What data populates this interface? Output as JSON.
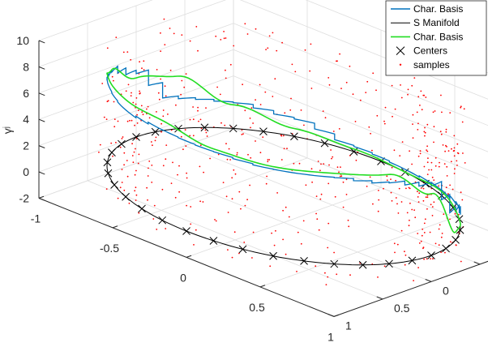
{
  "chart_data": {
    "type": "line3d",
    "zlabel": "γʲ",
    "xlim": [
      -1,
      1
    ],
    "ylim": [
      -1,
      1
    ],
    "zlim": [
      -2,
      10
    ],
    "x_ticks": [
      "-1",
      "-0.5",
      "0",
      "0.5",
      "1"
    ],
    "y_ticks": [
      "-1",
      "-0.5",
      "0",
      "0.5",
      "1"
    ],
    "z_ticks": [
      "-2",
      "0",
      "2",
      "4",
      "6",
      "8",
      "10"
    ],
    "grid": true,
    "legend_position": "top-right",
    "legend": [
      {
        "label": "Char. Basis",
        "marker": "line",
        "color": "#0072BD"
      },
      {
        "label": "S Manifold",
        "marker": "line",
        "color": "#000000"
      },
      {
        "label": "Char. Basis",
        "marker": "line",
        "color": "#22dd22"
      },
      {
        "label": "Centers",
        "marker": "x",
        "color": "#000000"
      },
      {
        "label": "samples",
        "marker": "dot",
        "color": "#ff0000"
      }
    ],
    "manifold": {
      "shape": "unit-circle",
      "z": 0,
      "color": "#000000"
    },
    "centers": {
      "count": 36,
      "radius": 1,
      "z": 0,
      "color": "#000000"
    },
    "series": [
      {
        "legend_index": 0,
        "color": "#0072BD",
        "style": "staircase",
        "theta_deg": [
          0,
          20,
          40,
          60,
          80,
          100,
          120,
          140,
          160,
          180,
          200,
          220,
          240,
          260,
          280,
          300,
          320,
          340
        ],
        "z": [
          5.5,
          6.2,
          6.6,
          6.6,
          6.8,
          6.9,
          6.6,
          6.8,
          6.2,
          5.0,
          2.3,
          2.0,
          1.4,
          0.4,
          0.2,
          0.4,
          0.8,
          2.3
        ]
      },
      {
        "legend_index": 2,
        "color": "#22dd22",
        "style": "smooth",
        "theta_deg": [
          0,
          20,
          40,
          60,
          80,
          100,
          120,
          140,
          160,
          180,
          200,
          220,
          240,
          260,
          280,
          300,
          320,
          340
        ],
        "z": [
          4.7,
          6.8,
          6.9,
          6.8,
          7.0,
          7.6,
          7.4,
          7.3,
          6.3,
          4.5,
          4.0,
          1.8,
          0.6,
          0.2,
          0.0,
          0.3,
          0.0,
          0.6
        ]
      }
    ],
    "samples": {
      "color": "#ff0000",
      "z_range": [
        -2,
        8.5
      ],
      "radius_range": [
        0.8,
        1.05
      ]
    }
  }
}
